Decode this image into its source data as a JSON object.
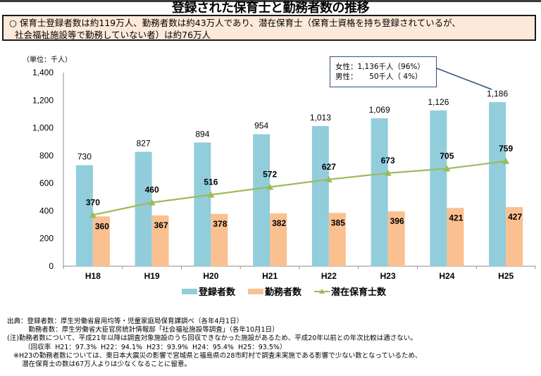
{
  "header": {
    "title": "登録された保育士と勤務者数の推移",
    "summary_line1": "○  保育士登録者数は約119万人、勤務者数は約43万人であり、潜在保育士（保育士資格を持ち登録されているが、",
    "summary_line2": "社会福祉施設等で勤務していない者）は約76万人"
  },
  "callout": {
    "line1": "女性：1,136千人（96%）",
    "line2": "男性：     50千人（ 4%）"
  },
  "notes": [
    "出典：登録者数：厚生労働省雇用均等・児童家庭局保育課調べ（各年4月1日）",
    "          勤務者数：厚生労働省大臣官房統計情報部「社会福祉施設等調査」（各年10月1日）",
    "(注)勤務者数について、平成21年以降は調査対象施設のうち回収できなかった施設があるため、平成20年以前との年次比較は適さない。",
    "        （回収率  H21：97.3%  H22：94.1%  H23：93.9%  H24：95.4%  H25：93.5%）",
    "   ※H23の勤務者数については、東日本大震災の影響で宮城県と福島県の28市町村で調査未実施である影響で少ない数となっているため、",
    "       潜在保育士の数は67万人よりは少なくなることに留意。"
  ],
  "chart_data": {
    "type": "bar",
    "title": "登録された保育士と勤務者数の推移",
    "unit_label": "（単位：千人）",
    "xlabel": "",
    "ylabel": "千人",
    "ylim": [
      0,
      1400
    ],
    "yticks": [
      0,
      200,
      400,
      600,
      800,
      1000,
      1200,
      1400
    ],
    "ytick_labels": [
      "0",
      "200",
      "400",
      "600",
      "800",
      "1,000",
      "1,200",
      "1,400"
    ],
    "grid": false,
    "legend_position": "bottom",
    "categories": [
      "H18",
      "H19",
      "H20",
      "H21",
      "H22",
      "H23",
      "H24",
      "H25"
    ],
    "series": [
      {
        "name": "登録者数",
        "kind": "bar",
        "color": "#92cddc",
        "values": [
          730,
          827,
          894,
          954,
          1013,
          1069,
          1126,
          1186
        ],
        "labels": [
          "730",
          "827",
          "894",
          "954",
          "1,013",
          "1,069",
          "1,126",
          "1,186"
        ]
      },
      {
        "name": "勤務者数",
        "kind": "bar",
        "color": "#fac090",
        "values": [
          360,
          367,
          378,
          382,
          385,
          396,
          421,
          427
        ],
        "labels": [
          "360",
          "367",
          "378",
          "382",
          "385",
          "396",
          "421",
          "427"
        ]
      },
      {
        "name": "潜在保育士数",
        "kind": "line",
        "marker": "triangle",
        "color": "#9bbb59",
        "values": [
          370,
          460,
          516,
          572,
          627,
          673,
          705,
          759
        ],
        "labels": [
          "370",
          "460",
          "516",
          "572",
          "627",
          "673",
          "705",
          "759"
        ]
      }
    ],
    "annotations": [
      {
        "target": "H25 登録者数",
        "text": "女性：1,136千人（96%） 男性：50千人（4%）"
      }
    ]
  }
}
